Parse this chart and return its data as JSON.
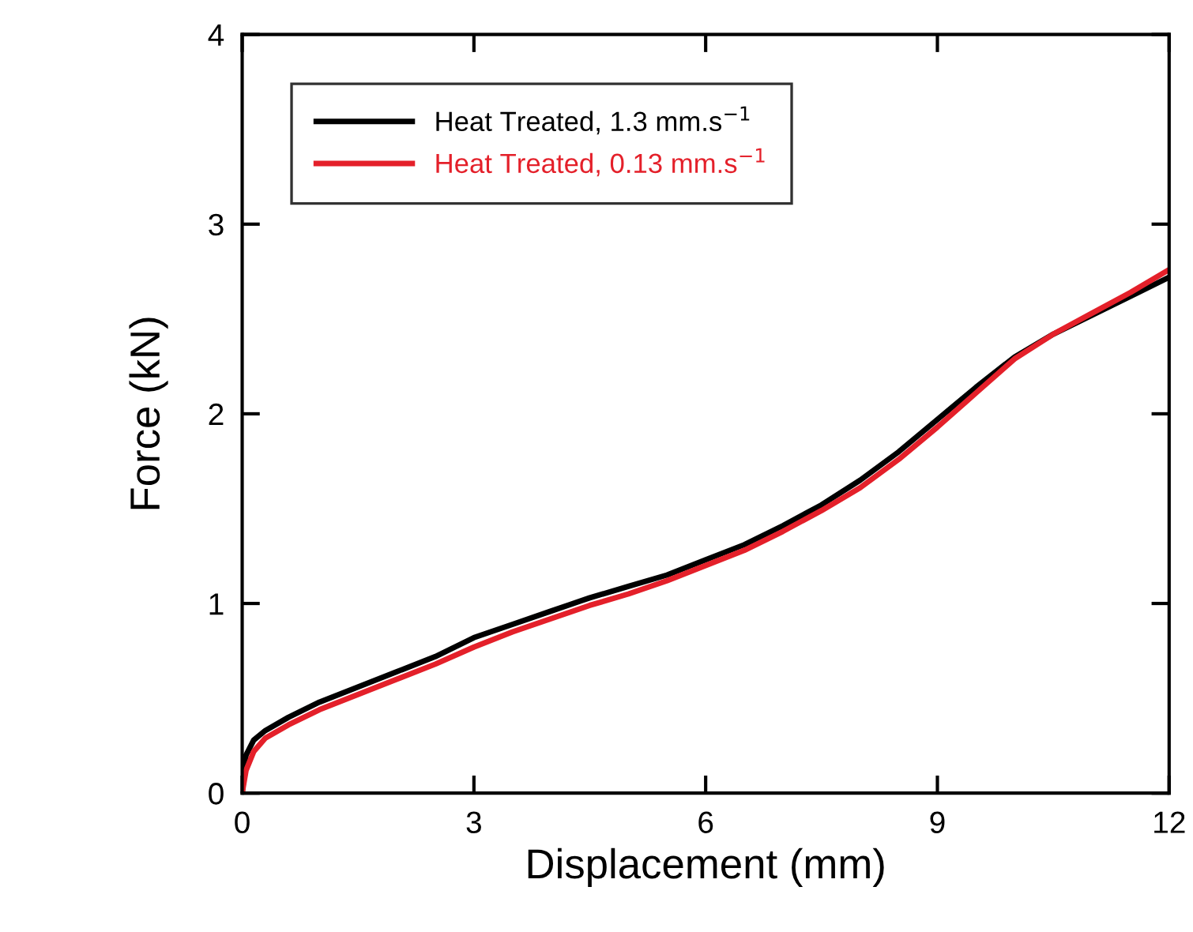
{
  "chart_data": {
    "type": "line",
    "xlabel": "Displacement (mm)",
    "ylabel": "Force (kN)",
    "xlim": [
      0,
      12
    ],
    "ylim": [
      0,
      4
    ],
    "xticks": [
      0,
      3,
      6,
      9,
      12
    ],
    "yticks": [
      0,
      1,
      2,
      3,
      4
    ],
    "grid": false,
    "legend": "top left",
    "marker": "none",
    "line_style": "solid",
    "series": [
      {
        "name": "Heat Treated, 1.3 mm.s$^{−1}$",
        "color": "#000000",
        "x": [
          0,
          0.05,
          0.15,
          0.3,
          0.6,
          1,
          1.5,
          2,
          2.5,
          3,
          3.5,
          4,
          4.5,
          5,
          5.5,
          6,
          6.5,
          7,
          7.5,
          8,
          8.5,
          9,
          9.5,
          10,
          10.5,
          11,
          11.5,
          12
        ],
        "values": [
          0,
          0.2,
          0.28,
          0.33,
          0.4,
          0.48,
          0.56,
          0.64,
          0.72,
          0.82,
          0.89,
          0.96,
          1.03,
          1.09,
          1.15,
          1.23,
          1.31,
          1.41,
          1.52,
          1.65,
          1.8,
          1.97,
          2.14,
          2.3,
          2.42,
          2.52,
          2.62,
          2.72
        ]
      },
      {
        "name": "Heat Treated, 0.13 mm.s$^{−1}$",
        "color": "#e4202a",
        "x": [
          0,
          0.05,
          0.15,
          0.3,
          0.6,
          1,
          1.5,
          2,
          2.5,
          3,
          3.5,
          4,
          4.5,
          5,
          5.5,
          6,
          6.5,
          7,
          7.5,
          8,
          8.5,
          9,
          9.5,
          10,
          10.5,
          11,
          11.5,
          12
        ],
        "values": [
          0,
          0.12,
          0.22,
          0.29,
          0.36,
          0.44,
          0.52,
          0.6,
          0.68,
          0.77,
          0.85,
          0.92,
          0.99,
          1.05,
          1.12,
          1.2,
          1.28,
          1.38,
          1.49,
          1.61,
          1.76,
          1.93,
          2.11,
          2.29,
          2.42,
          2.53,
          2.64,
          2.76
        ]
      }
    ]
  }
}
